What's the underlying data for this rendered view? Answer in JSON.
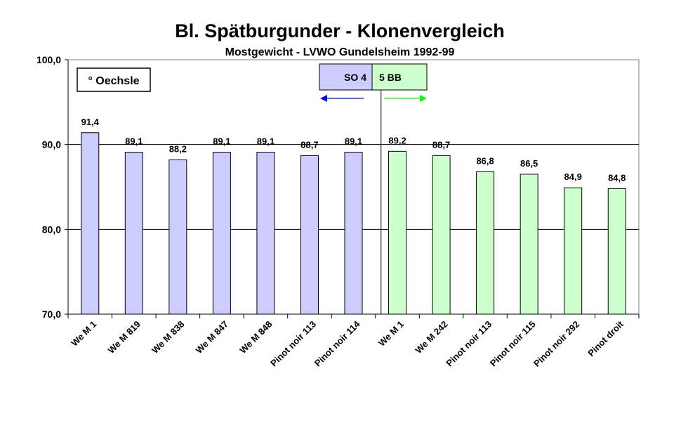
{
  "chart_data": {
    "type": "bar",
    "title": "Bl. Spätburgunder - Klonenvergleich",
    "subtitle": "Mostgewicht - LVWO Gundelsheim 1992-99",
    "ylabel": "° Oechsle",
    "ylim": [
      70,
      100
    ],
    "yticks": [
      "70,0",
      "80,0",
      "90,0",
      "100,0"
    ],
    "ytick_values": [
      70,
      80,
      90,
      100
    ],
    "gridlines": [
      80,
      90
    ],
    "categories": [
      "We M 1",
      "We M 819",
      "We M 838",
      "We M 847",
      "We M 848",
      "Pinot noir 113",
      "Pinot noir 114",
      "We M 1",
      "We M 242",
      "Pinot noir 113",
      "Pinot noir 115",
      "Pinot noir 292",
      "Pinot droit"
    ],
    "values": [
      91.4,
      89.1,
      88.2,
      89.1,
      89.1,
      88.7,
      89.1,
      89.2,
      88.7,
      86.8,
      86.5,
      84.9,
      84.8
    ],
    "value_labels": [
      "91,4",
      "89,1",
      "88,2",
      "89,1",
      "89,1",
      "88,7",
      "89,1",
      "89,2",
      "88,7",
      "86,8",
      "86,5",
      "84,9",
      "84,8"
    ],
    "groups": [
      {
        "name": "SO 4",
        "count": 7,
        "color": "#ccccff",
        "arrow_color": "#0000ff",
        "direction": "left"
      },
      {
        "name": "5 BB",
        "count": 6,
        "color": "#ccffcc",
        "arrow_color": "#00ff00",
        "direction": "right"
      }
    ]
  }
}
